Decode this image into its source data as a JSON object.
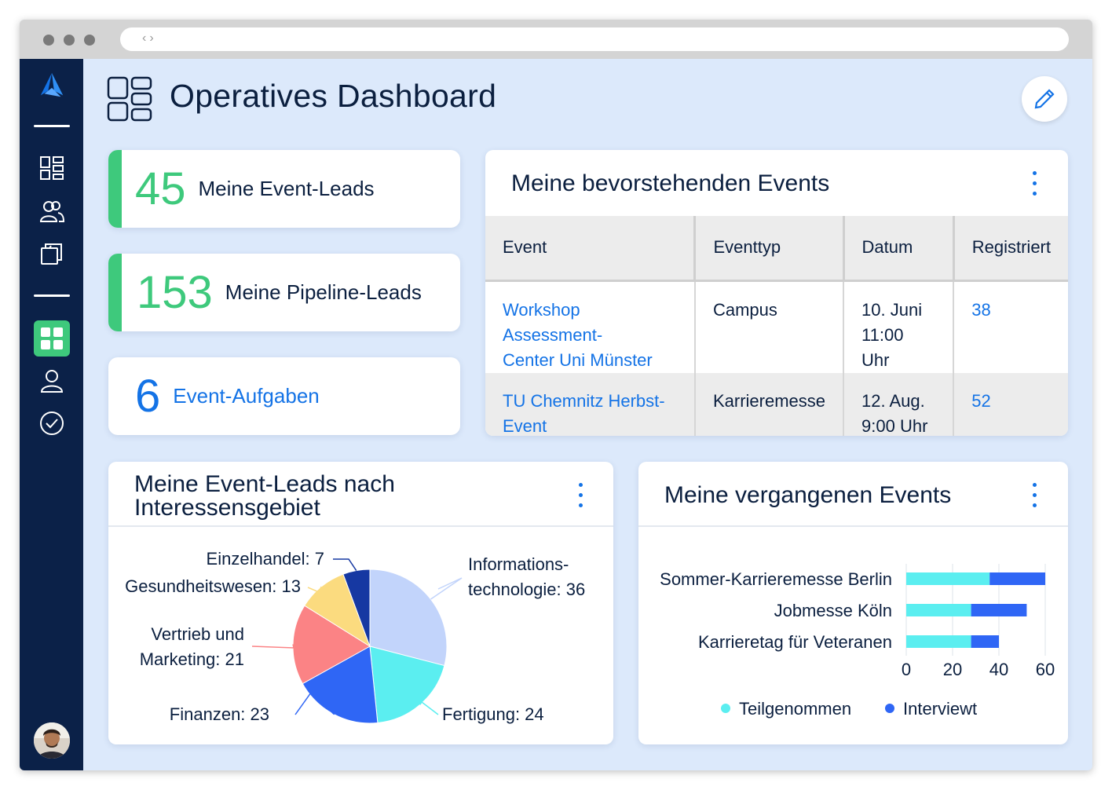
{
  "page": {
    "title": "Operatives Dashboard"
  },
  "kpis": [
    {
      "value": "45",
      "label": "Meine Event-Leads"
    },
    {
      "value": "153",
      "label": "Meine Pipeline-Leads"
    },
    {
      "value": "6",
      "label": "Event-Aufgaben"
    }
  ],
  "upcoming": {
    "title": "Meine bevorstehenden Events",
    "columns": [
      "Event",
      "Eventtyp",
      "Datum",
      "Registriert"
    ],
    "rows": [
      {
        "event_l1": "Workshop Assessment-",
        "event_l2": "Center Uni Münster",
        "type": "Campus",
        "date_l1": "10. Juni",
        "date_l2": "11:00 Uhr",
        "registered": "38"
      },
      {
        "event_l1": "TU Chemnitz Herbst-",
        "event_l2": "Event",
        "type": "Karrieremesse",
        "date_l1": "12. Aug.",
        "date_l2": "9:00 Uhr",
        "registered": "52"
      }
    ]
  },
  "pie_card": {
    "title_l1": "Meine Event-Leads nach",
    "title_l2": "Interessensgebiet"
  },
  "bar_card": {
    "title": "Meine vergangenen Events"
  },
  "colors": {
    "accent": "#1473e6",
    "green": "#3ec97c",
    "navy": "#0b2148"
  },
  "icons": [
    "logo-icon",
    "dashboard-icon",
    "contacts-icon",
    "folders-icon",
    "dashboard-active-icon",
    "user-icon",
    "check-circle-icon",
    "edit-icon",
    "kebab-icon"
  ],
  "chart_data": [
    {
      "type": "pie",
      "labels": [
        "Informations-technologie",
        "Fertigung",
        "Finanzen",
        "Vertrieb und Marketing",
        "Gesundheitswesen",
        "Einzelhandel"
      ],
      "label_lines": [
        [
          "Informations-",
          "technologie: 36"
        ],
        [
          "Fertigung: 24"
        ],
        [
          "Finanzen: 23"
        ],
        [
          "Vertrieb und",
          "Marketing: 21"
        ],
        [
          "Gesundheitswesen: 13"
        ],
        [
          "Einzelhandel: 7"
        ]
      ],
      "values": [
        36,
        24,
        23,
        21,
        13,
        7
      ],
      "colors": [
        "#c2d4fb",
        "#5beef0",
        "#2f66f5",
        "#fb8385",
        "#fbdb7f",
        "#1638a2"
      ]
    },
    {
      "type": "bar",
      "orientation": "horizontal",
      "stacked": true,
      "categories": [
        "Sommer-Karrieremesse Berlin",
        "Jobmesse Köln",
        "Karrieretag für Veteranen"
      ],
      "series": [
        {
          "name": "Teilgenommen",
          "values": [
            36,
            28,
            28
          ],
          "color": "#5beef0"
        },
        {
          "name": "Interviewt",
          "values": [
            24,
            24,
            12
          ],
          "color": "#2f66f5"
        }
      ],
      "xlim": [
        0,
        60
      ],
      "xticks": [
        "0",
        "20",
        "40",
        "60"
      ],
      "legend": "bottom"
    }
  ]
}
